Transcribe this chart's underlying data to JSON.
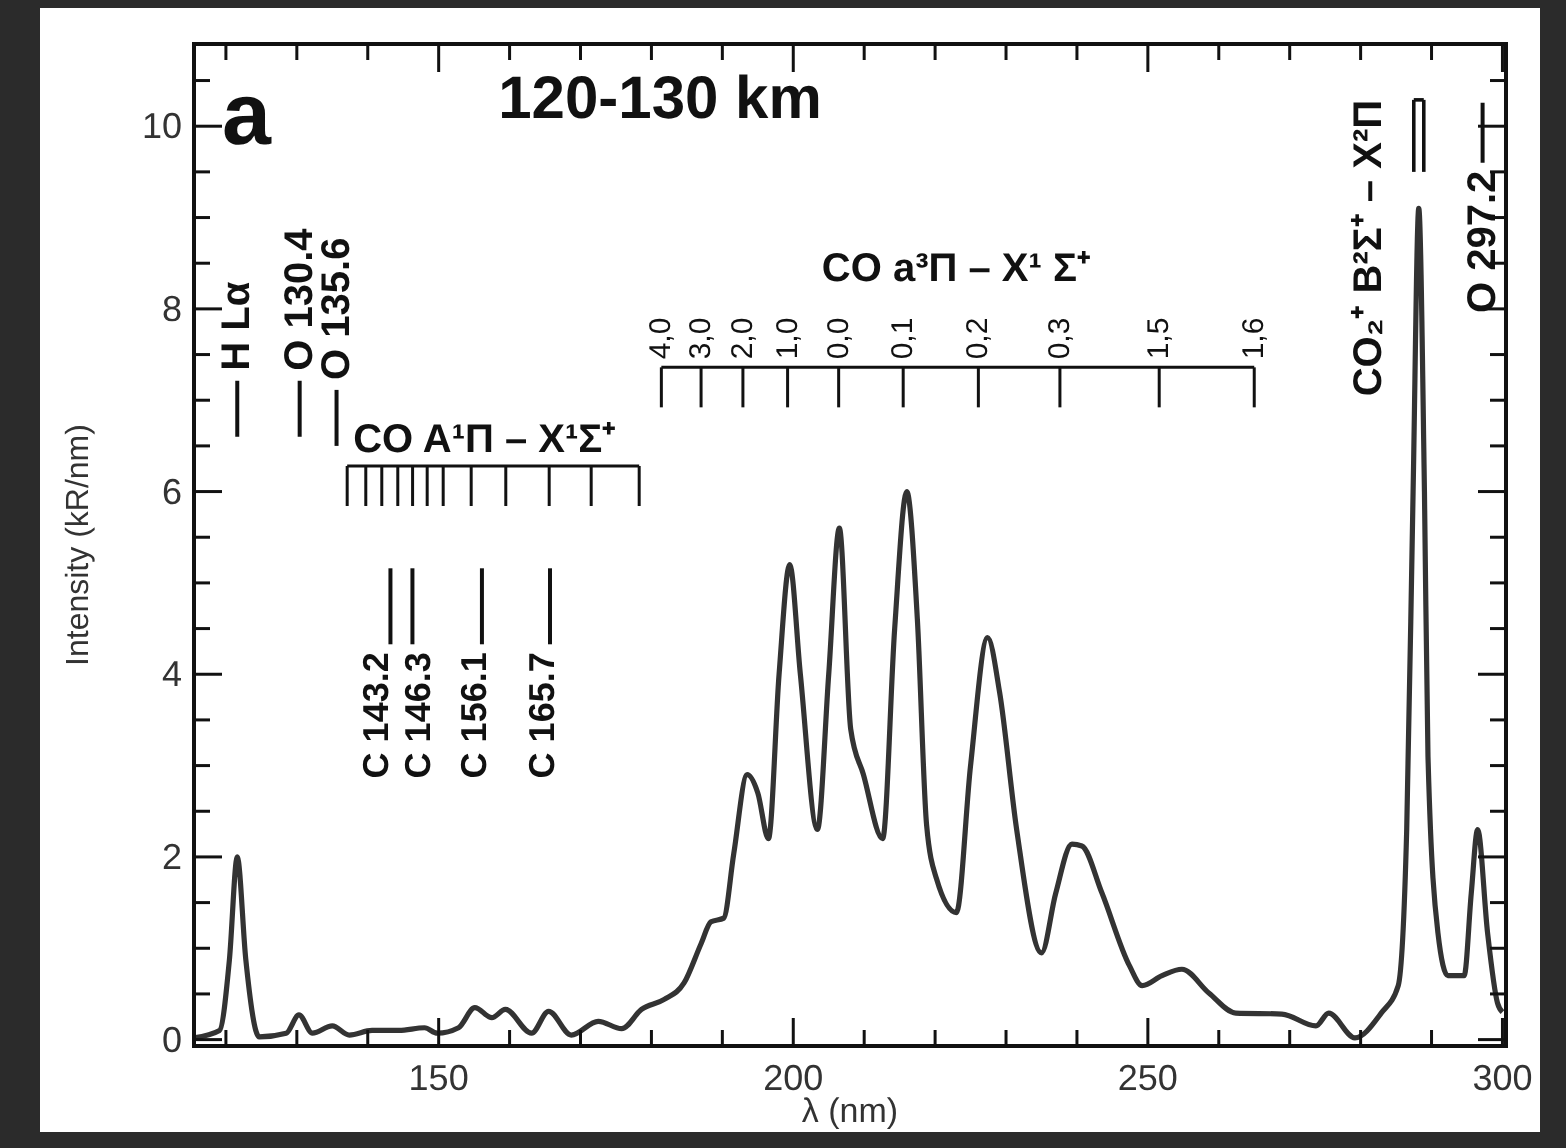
{
  "chart_data": {
    "type": "line",
    "title": "120-130 km",
    "xlabel": "λ (nm)",
    "ylabel": "Intensity (kR/nm)",
    "x": [
      115.5,
      119.1,
      120.5,
      121.6,
      122.8,
      124.7,
      128.5,
      130.3,
      132.2,
      135,
      137.4,
      140.6,
      144.4,
      148,
      149.8,
      152.8,
      155.1,
      157.5,
      159.4,
      163.1,
      165.5,
      168.7,
      172.5,
      175.8,
      178.6,
      181.8,
      184.6,
      187,
      188.4,
      190.2,
      191.6,
      193.5,
      195,
      196.5,
      198,
      199.5,
      201,
      203.4,
      205,
      206.5,
      208.1,
      209.9,
      212.6,
      214.3,
      216,
      217.5,
      218.8,
      220.2,
      223,
      225,
      227.4,
      229.1,
      231.5,
      235,
      237,
      239.3,
      240.7,
      243.5,
      247.4,
      249.2,
      252,
      254.8,
      258.6,
      262.4,
      268.9,
      273.7,
      275.5,
      279.2,
      282.9,
      285.3,
      286.5,
      287.4,
      288.2,
      289,
      289.5,
      290.9,
      292.3,
      294.6,
      295.6,
      296.5,
      297.9,
      299.3,
      300
    ],
    "series": [
      {
        "color": "#333333",
        "values": [
          0.02,
          0.1,
          0.88,
          2.0,
          0.88,
          0.03,
          0.07,
          0.27,
          0.07,
          0.15,
          0.05,
          0.1,
          0.1,
          0.13,
          0.07,
          0.13,
          0.35,
          0.24,
          0.33,
          0.07,
          0.31,
          0.05,
          0.2,
          0.12,
          0.33,
          0.44,
          0.62,
          1.05,
          1.29,
          1.33,
          2.03,
          2.9,
          2.7,
          2.2,
          4.0,
          5.2,
          4.0,
          2.3,
          4.0,
          5.6,
          3.4,
          2.9,
          2.2,
          4.5,
          6.0,
          4.6,
          2.35,
          1.76,
          1.39,
          3.0,
          4.4,
          3.8,
          2.3,
          0.95,
          1.6,
          2.14,
          2.12,
          1.61,
          0.81,
          0.59,
          0.7,
          0.77,
          0.51,
          0.29,
          0.28,
          0.15,
          0.29,
          0.02,
          0.29,
          0.59,
          2.3,
          6.0,
          9.1,
          6.0,
          3.1,
          1.17,
          0.7,
          0.7,
          1.6,
          2.3,
          1.17,
          0.4,
          0.3
        ]
      }
    ],
    "xlim": [
      115.5,
      300.5
    ],
    "xticks": [
      {
        "value": 120,
        "label": null
      },
      {
        "value": 130,
        "label": null
      },
      {
        "value": 140,
        "label": null
      },
      150,
      {
        "value": 160,
        "label": null
      },
      {
        "value": 170,
        "label": null
      },
      {
        "value": 180,
        "label": null
      },
      {
        "value": 190,
        "label": null
      },
      200,
      {
        "value": 210,
        "label": null
      },
      {
        "value": 220,
        "label": null
      },
      {
        "value": 230,
        "label": null
      },
      {
        "value": 240,
        "label": null
      },
      250,
      {
        "value": 260,
        "label": null
      },
      {
        "value": 270,
        "label": null
      },
      {
        "value": 280,
        "label": null
      },
      {
        "value": 290,
        "label": null
      },
      300
    ],
    "ylim": [
      -0.07,
      10.9
    ],
    "yticks": [
      0,
      {
        "value": 0.5,
        "label": null
      },
      {
        "value": 1,
        "label": null
      },
      {
        "value": 1.5,
        "label": null
      },
      2,
      {
        "value": 2.5,
        "label": null
      },
      {
        "value": 3,
        "label": null
      },
      {
        "value": 3.5,
        "label": null
      },
      4,
      {
        "value": 4.5,
        "label": null
      },
      {
        "value": 5,
        "label": null
      },
      {
        "value": 5.5,
        "label": null
      },
      6,
      {
        "value": 6.5,
        "label": null
      },
      {
        "value": 7,
        "label": null
      },
      {
        "value": 7.5,
        "label": null
      },
      8,
      {
        "value": 8.5,
        "label": null
      },
      {
        "value": 9,
        "label": null
      },
      {
        "value": 9.5,
        "label": null
      },
      10,
      {
        "value": 10.5,
        "label": null
      }
    ],
    "grid": false,
    "marker": "none",
    "line_style": "solid",
    "annotations": [
      "a",
      "H Lα",
      "O 130.4",
      "O 135.6",
      "CO A¹Π – X¹Σ⁺",
      "C 143.2",
      "C 146.3",
      "C 156.1",
      "C 165.7",
      "CO a³Π – X¹ Σ⁺",
      "4,0",
      "3,0",
      "2,0",
      "1,0",
      "0,0",
      "0,1",
      "0,2",
      "0,3",
      "1,5",
      "1,6",
      "CO₂⁺ B²Σ⁺ – X²Π",
      "O 297.2"
    ]
  }
}
